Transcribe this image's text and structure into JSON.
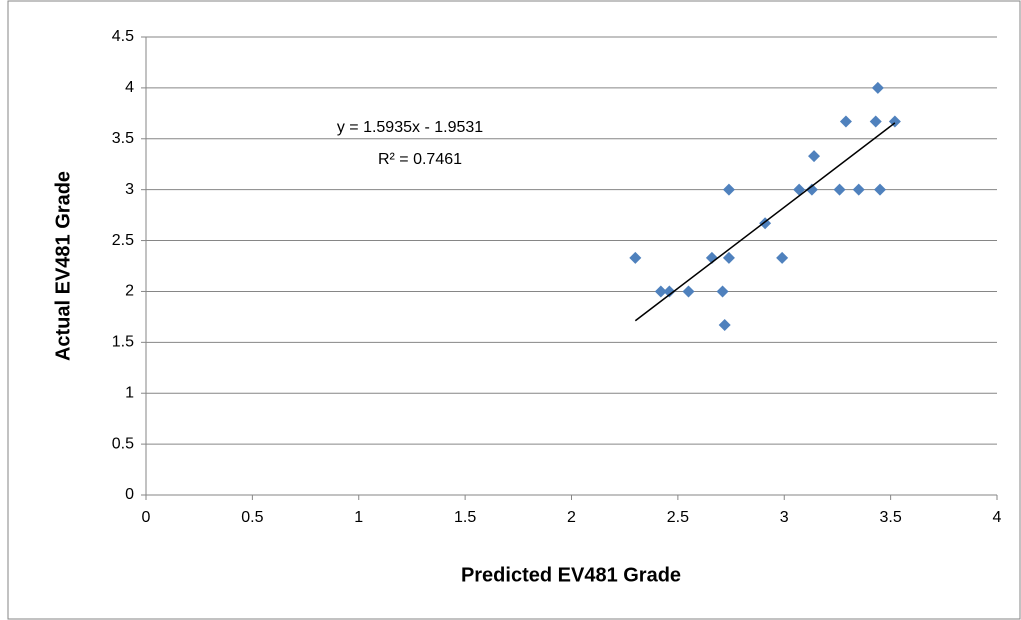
{
  "chart_data": {
    "type": "scatter",
    "xlabel": "Predicted EV481 Grade",
    "ylabel": "Actual EV481 Grade",
    "annotations": [
      "y = 1.5935x - 1.9531",
      "R² = 0.7461"
    ],
    "series": [
      {
        "color": "#4f81bd",
        "x": [
          2.3,
          2.42,
          2.46,
          2.55,
          2.66,
          2.71,
          2.72,
          2.74,
          2.74,
          2.91,
          2.99,
          3.07,
          3.13,
          3.14,
          3.26,
          3.29,
          3.35,
          3.43,
          3.44,
          3.45,
          3.52
        ],
        "values": [
          2.33,
          2.0,
          2.0,
          2.0,
          2.33,
          2.0,
          1.67,
          2.33,
          3.0,
          2.67,
          2.33,
          3.0,
          3.0,
          3.33,
          3.0,
          3.67,
          3.0,
          3.67,
          4.0,
          3.0,
          3.67
        ]
      }
    ],
    "trendline": {
      "color": "#000000",
      "x": [
        2.3,
        3.52
      ],
      "values": [
        1.712,
        3.656
      ]
    },
    "xlim": [
      0,
      4
    ],
    "xticks": [
      0,
      0.5,
      1,
      1.5,
      2,
      2.5,
      3,
      3.5,
      4
    ],
    "ylim": [
      0,
      4.5
    ],
    "yticks": [
      0,
      0.5,
      1,
      1.5,
      2,
      2.5,
      3,
      3.5,
      4,
      4.5
    ],
    "grid": true
  }
}
